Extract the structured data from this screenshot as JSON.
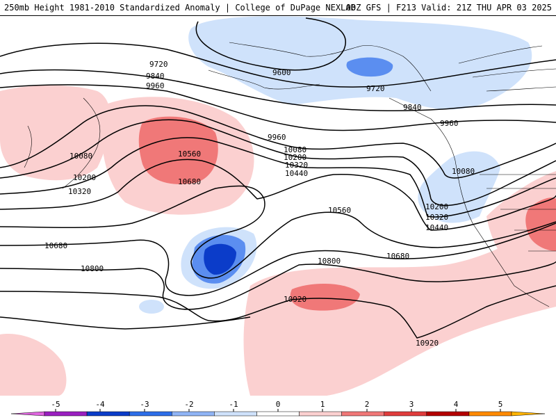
{
  "header": {
    "left": "250mb Height 1981-2010 Standardized Anomaly | College of DuPage NEXLAB",
    "right": "00Z GFS | F213 Valid: 21Z THU APR 03 2025"
  },
  "colorbar": {
    "ticks": [
      "-5",
      "-4",
      "-3",
      "-2",
      "-1",
      "0",
      "1",
      "2",
      "3",
      "4",
      "5"
    ],
    "colors": [
      "#e066e0",
      "#9a1fc0",
      "#0b3cc9",
      "#2d6ee8",
      "#8fb4f5",
      "#cfe2fb",
      "#ffffff",
      "#fbd0d0",
      "#f07878",
      "#e03c3c",
      "#b40000",
      "#ff8a00",
      "#ffb400"
    ]
  },
  "contour_labels": [
    {
      "id": "9720-a",
      "text": "9720"
    },
    {
      "id": "9840-a",
      "text": "9840"
    },
    {
      "id": "9960-a",
      "text": "9960"
    },
    {
      "id": "9600",
      "text": "9600"
    },
    {
      "id": "9720-b",
      "text": "9720"
    },
    {
      "id": "9840-b",
      "text": "9840"
    },
    {
      "id": "9960-b",
      "text": "9960"
    },
    {
      "id": "9960-c",
      "text": "9960"
    },
    {
      "id": "10080-a",
      "text": "10080"
    },
    {
      "id": "10080-b",
      "text": "10080"
    },
    {
      "id": "10080-c",
      "text": "10080"
    },
    {
      "id": "10200-a",
      "text": "10200"
    },
    {
      "id": "10200-b",
      "text": "10200"
    },
    {
      "id": "10200-c",
      "text": "10200"
    },
    {
      "id": "10320-a",
      "text": "10320"
    },
    {
      "id": "10320-b",
      "text": "10320"
    },
    {
      "id": "10320-c",
      "text": "10320"
    },
    {
      "id": "10440-a",
      "text": "10440"
    },
    {
      "id": "10440-b",
      "text": "10440"
    },
    {
      "id": "10560-a",
      "text": "10560"
    },
    {
      "id": "10560-b",
      "text": "10560"
    },
    {
      "id": "10680-a",
      "text": "10680"
    },
    {
      "id": "10680-b",
      "text": "10680"
    },
    {
      "id": "10680-c",
      "text": "10680"
    },
    {
      "id": "10800-a",
      "text": "10800"
    },
    {
      "id": "10800-b",
      "text": "10800"
    },
    {
      "id": "10920-a",
      "text": "10920"
    },
    {
      "id": "10920-b",
      "text": "10920"
    }
  ]
}
